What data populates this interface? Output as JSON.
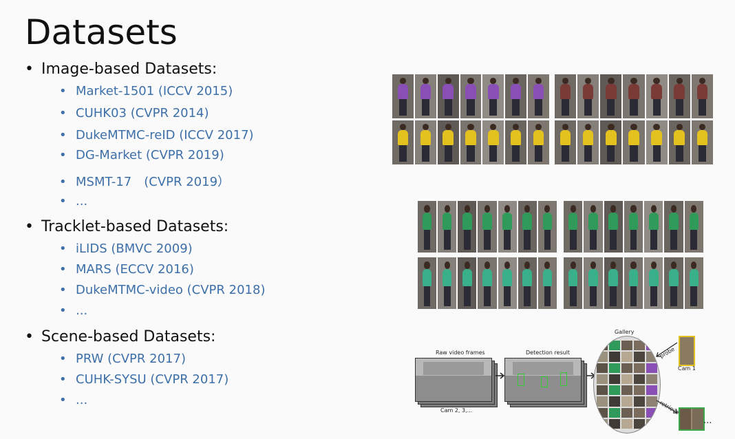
{
  "slide": {
    "title": "Datasets",
    "sections": [
      {
        "label": "Image-based Datasets:",
        "items": [
          "Market-1501 (ICCV 2015)",
          "CUHK03 (CVPR 2014)",
          "DukeMTMC-reID (ICCV 2017)",
          "DG-Market (CVPR 2019)",
          "MSMT-17　(CVPR 2019）",
          "..."
        ]
      },
      {
        "label": "Tracklet-based Datasets:",
        "items": [
          "iLIDS (BMVC 2009)",
          "MARS (ECCV 2016)",
          "DukeMTMC-video (CVPR 2018)",
          "..."
        ]
      },
      {
        "label": "Scene-based Datasets:",
        "items": [
          "PRW (CVPR 2017)",
          "CUHK-SYSU (CVPR 2017)",
          "..."
        ]
      }
    ]
  },
  "figure": {
    "raw_frames_label": "Raw video frames",
    "detection_label": "Detection result",
    "gallery_label": "Gallery",
    "probe_label": "probe",
    "retrieve_label": "retrieve",
    "cam1_label": "Cam 1",
    "cams_label": "Cam 2, 3,...",
    "ellipsis": "..."
  },
  "colors": {
    "title": "#111111",
    "item_link": "#3d6fa8",
    "purple_shirt": "#8a4fb5",
    "yellow_shirt": "#e3c21f",
    "green_shirt": "#2f9a5a",
    "maroon_shirt": "#7a3a36",
    "teal_shirt": "#39b08a"
  }
}
